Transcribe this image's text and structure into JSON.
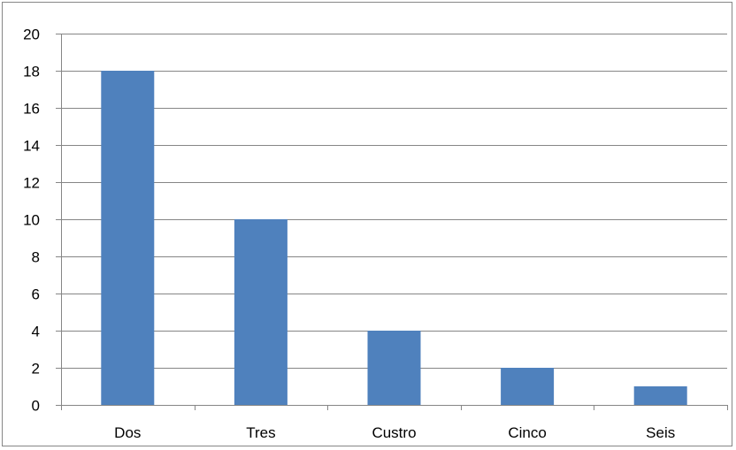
{
  "chart_data": {
    "type": "bar",
    "categories": [
      "Dos",
      "Tres",
      "Custro",
      "Cinco",
      "Seis"
    ],
    "values": [
      18,
      10,
      4,
      2,
      1
    ],
    "ylim": [
      0,
      20
    ],
    "y_ticks": [
      "0",
      "2",
      "4",
      "6",
      "8",
      "10",
      "12",
      "14",
      "16",
      "18",
      "20"
    ],
    "grid": true,
    "legend": "none",
    "bar_color": "#4F81BD",
    "grid_color": "#868686"
  }
}
